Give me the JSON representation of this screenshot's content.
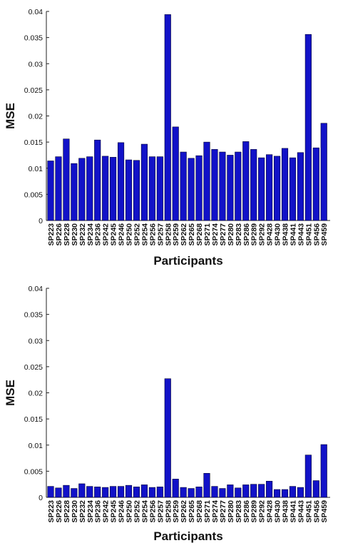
{
  "chart_data": [
    {
      "type": "bar",
      "title": "",
      "xlabel": "Participants",
      "ylabel": "MSE",
      "ylim": [
        0,
        0.04
      ],
      "yticks": [
        "0",
        "0.005",
        "0.01",
        "0.015",
        "0.02",
        "0.025",
        "0.03",
        "0.035",
        "0.04"
      ],
      "grid": false,
      "categories": [
        "SP223",
        "SP226",
        "SP228",
        "SP230",
        "SP232",
        "SP234",
        "SP236",
        "SP242",
        "SP245",
        "SP246",
        "SP250",
        "SP252",
        "SP254",
        "SP256",
        "SP257",
        "SP258",
        "SP259",
        "SP262",
        "SP265",
        "SP268",
        "SP271",
        "SP274",
        "SP277",
        "SP280",
        "SP283",
        "SP286",
        "SP289",
        "SP292",
        "SP428",
        "SP430",
        "SP438",
        "SP441",
        "SP443",
        "SP451",
        "SP456",
        "SP459"
      ],
      "highlighted": [
        "SP259",
        "SP438",
        "SP451"
      ],
      "values": [
        0.0114,
        0.0122,
        0.0156,
        0.0109,
        0.0119,
        0.0122,
        0.0154,
        0.0123,
        0.0121,
        0.0149,
        0.0116,
        0.0115,
        0.0146,
        0.0122,
        0.0122,
        0.0394,
        0.0179,
        0.0131,
        0.0119,
        0.0124,
        0.015,
        0.0136,
        0.0131,
        0.0125,
        0.0131,
        0.0151,
        0.0136,
        0.012,
        0.0126,
        0.0123,
        0.0138,
        0.012,
        0.013,
        0.0356,
        0.0139,
        0.0186
      ]
    },
    {
      "type": "bar",
      "title": "",
      "xlabel": "Participants",
      "ylabel": "MSE",
      "ylim": [
        0,
        0.04
      ],
      "yticks": [
        "0",
        "0.005",
        "0.01",
        "0.015",
        "0.02",
        "0.025",
        "0.03",
        "0.035",
        "0.04"
      ],
      "grid": false,
      "categories": [
        "SP223",
        "SP226",
        "SP228",
        "SP230",
        "SP232",
        "SP234",
        "SP236",
        "SP242",
        "SP245",
        "SP246",
        "SP250",
        "SP252",
        "SP254",
        "SP256",
        "SP257",
        "SP258",
        "SP259",
        "SP262",
        "SP265",
        "SP268",
        "SP271",
        "SP274",
        "SP277",
        "SP280",
        "SP283",
        "SP286",
        "SP289",
        "SP292",
        "SP428",
        "SP430",
        "SP438",
        "SP441",
        "SP443",
        "SP451",
        "SP456",
        "SP459"
      ],
      "highlighted": [
        "SP259",
        "SP438",
        "SP451"
      ],
      "values": [
        0.0021,
        0.0018,
        0.0023,
        0.0017,
        0.0026,
        0.0021,
        0.002,
        0.0019,
        0.0021,
        0.0021,
        0.0023,
        0.002,
        0.0024,
        0.0019,
        0.002,
        0.0227,
        0.0035,
        0.0019,
        0.0017,
        0.002,
        0.0046,
        0.0021,
        0.0017,
        0.0024,
        0.0018,
        0.0024,
        0.0025,
        0.0025,
        0.0031,
        0.0015,
        0.0015,
        0.0021,
        0.0019,
        0.0081,
        0.0032,
        0.0101
      ]
    }
  ],
  "colors": {
    "bar_fill": "#1212c8",
    "bar_stroke": "#000033",
    "axis": "#222222",
    "label": "#111111",
    "highlight_label": "#e0303a"
  }
}
